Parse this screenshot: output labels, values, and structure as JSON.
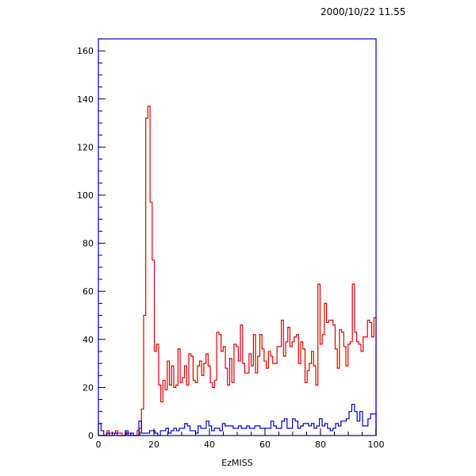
{
  "timestamp": "2000/10/22   11.55",
  "chart_data": {
    "type": "histogram",
    "title": "",
    "xlabel": "EzMISS",
    "ylabel": "",
    "xlim": [
      0,
      100
    ],
    "ylim": [
      0,
      165
    ],
    "bin_width": 1,
    "x_ticks": [
      "0",
      "20",
      "40",
      "60",
      "80",
      "100"
    ],
    "y_ticks": [
      "0",
      "20",
      "40",
      "60",
      "80",
      "100",
      "120",
      "140",
      "160"
    ],
    "grid": false,
    "legend": "none",
    "series": [
      {
        "color": "#dd0000",
        "values": [
          0,
          0,
          0,
          0,
          2,
          1,
          1,
          1,
          2,
          1,
          1,
          0,
          0,
          1,
          1,
          0,
          0,
          0,
          2,
          3,
          11,
          50,
          132,
          137,
          97,
          73,
          35,
          38,
          21,
          14,
          23,
          19,
          31,
          21,
          29,
          20,
          21,
          36,
          22,
          24,
          29,
          21,
          34,
          33,
          23,
          22,
          29,
          31,
          25,
          30,
          34,
          29,
          22,
          20,
          23,
          43,
          42,
          35,
          37,
          28,
          21,
          32,
          22,
          38,
          37,
          31,
          46,
          30,
          26,
          26,
          34,
          29,
          42,
          26,
          33,
          42,
          36,
          31,
          28,
          35,
          33,
          30,
          30,
          37,
          37,
          48,
          33,
          39,
          45,
          37,
          39,
          41,
          42,
          30,
          39,
          36,
          22,
          27,
          30,
          35,
          29,
          21,
          63,
          38,
          42,
          55,
          47,
          48,
          48,
          46,
          36,
          28,
          44,
          43,
          37,
          29,
          38,
          39,
          63,
          43,
          39,
          38,
          35,
          41,
          41,
          48,
          47,
          41,
          49
        ]
      },
      {
        "color": "#0000cc",
        "values": [
          5,
          2,
          0,
          1,
          0,
          0,
          1,
          0,
          0,
          0,
          2,
          0,
          1,
          0,
          0,
          6,
          1,
          1,
          1,
          2,
          2,
          1,
          0,
          2,
          2,
          3,
          1,
          2,
          3,
          2,
          3,
          3,
          5,
          4,
          2,
          2,
          1,
          4,
          3,
          3,
          6,
          4,
          2,
          3,
          3,
          2,
          5,
          4,
          4,
          4,
          3,
          3,
          4,
          3,
          3,
          4,
          3,
          3,
          4,
          4,
          3,
          3,
          3,
          3,
          6,
          4,
          3,
          3,
          6,
          7,
          3,
          3,
          7,
          6,
          3,
          4,
          5,
          5,
          4,
          5,
          3,
          4,
          7,
          4,
          5,
          3,
          2,
          3,
          5,
          4,
          6,
          6,
          7,
          10,
          13,
          10,
          6,
          10,
          4,
          4,
          7,
          9,
          9
        ]
      }
    ]
  }
}
